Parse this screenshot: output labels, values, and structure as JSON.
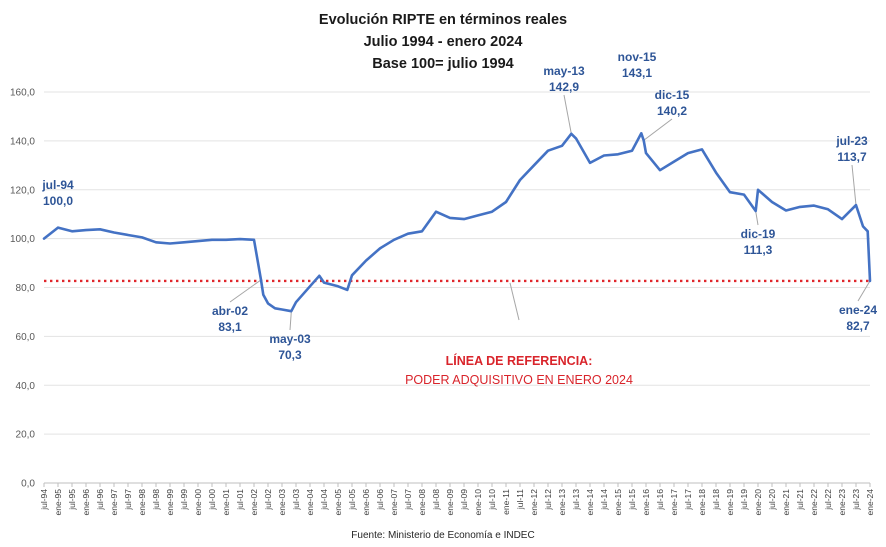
{
  "chart_data": {
    "type": "line",
    "title": [
      "Evolución RIPTE en términos reales",
      "Julio 1994 - enero 2024",
      "Base 100= julio 1994"
    ],
    "source": "Fuente: Ministerio de Economía e INDEC",
    "ylim": [
      0,
      160
    ],
    "yticks": [
      "0,0",
      "20,0",
      "40,0",
      "60,0",
      "80,0",
      "100,0",
      "120,0",
      "140,0",
      "160,0"
    ],
    "yticks_values": [
      0,
      20,
      40,
      60,
      80,
      100,
      120,
      140,
      160
    ],
    "grid": true,
    "line_color": "#4472c4",
    "reference_color": "#e0262b",
    "xticks": [
      "jul-94",
      "ene-95",
      "jul-95",
      "ene-96",
      "jul-96",
      "ene-97",
      "jul-97",
      "ene-98",
      "jul-98",
      "ene-99",
      "jul-99",
      "ene-00",
      "jul-00",
      "ene-01",
      "jul-01",
      "ene-02",
      "jul-02",
      "ene-03",
      "jul-03",
      "ene-04",
      "jul-04",
      "ene-05",
      "jul-05",
      "ene-06",
      "jul-06",
      "ene-07",
      "jul-07",
      "ene-08",
      "jul-08",
      "ene-09",
      "jul-09",
      "ene-10",
      "jul-10",
      "ene-11",
      "jul-11",
      "ene-12",
      "jul-12",
      "ene-13",
      "jul-13",
      "ene-14",
      "jul-14",
      "ene-15",
      "jul-15",
      "ene-16",
      "jul-16",
      "ene-17",
      "jul-17",
      "ene-18",
      "jul-18",
      "ene-19",
      "jul-19",
      "ene-20",
      "jul-20",
      "ene-21",
      "jul-21",
      "ene-22",
      "jul-22",
      "ene-23",
      "jul-23",
      "ene-24"
    ],
    "series": [
      {
        "x": [
          "jul-94",
          "ene-95",
          "jul-95",
          "ene-96",
          "jul-96",
          "ene-97",
          "jul-97",
          "ene-98",
          "jul-98",
          "ene-99",
          "jul-99",
          "ene-00",
          "jul-00",
          "ene-01",
          "jul-01",
          "ene-02",
          "abr-02",
          "may-02",
          "jul-02",
          "oct-02",
          "ene-03",
          "may-03",
          "jul-03",
          "ene-04",
          "may-04",
          "jul-04",
          "ene-05",
          "may-05",
          "jul-05",
          "ene-06",
          "jul-06",
          "ene-07",
          "jul-07",
          "ene-08",
          "jul-08",
          "ene-09",
          "jul-09",
          "ene-10",
          "jul-10",
          "ene-11",
          "jul-11",
          "ene-12",
          "jul-12",
          "ene-13",
          "may-13",
          "jul-13",
          "ene-14",
          "jul-14",
          "ene-15",
          "jul-15",
          "nov-15",
          "dic-15",
          "ene-16",
          "jul-16",
          "ene-17",
          "jul-17",
          "ene-18",
          "jul-18",
          "ene-19",
          "jul-19",
          "dic-19",
          "ene-20",
          "jul-20",
          "ene-21",
          "jul-21",
          "ene-22",
          "jul-22",
          "ene-23",
          "jul-23",
          "oct-23",
          "dic-23",
          "ene-24"
        ],
        "values": [
          100.0,
          104.5,
          103.0,
          103.5,
          103.8,
          102.5,
          101.5,
          100.5,
          98.5,
          98.0,
          98.5,
          99.0,
          99.5,
          99.5,
          99.8,
          99.5,
          83.1,
          77.0,
          73.5,
          71.5,
          71.0,
          70.3,
          74.0,
          80.5,
          84.8,
          82.0,
          80.5,
          79.0,
          85.0,
          91.0,
          96.0,
          99.5,
          102.0,
          103.0,
          111.0,
          108.5,
          108.0,
          109.5,
          111.0,
          115.0,
          124.0,
          130.0,
          136.0,
          138.0,
          142.9,
          141.0,
          131.0,
          134.0,
          134.5,
          136.0,
          143.1,
          140.2,
          135.0,
          128.0,
          131.5,
          135.0,
          136.5,
          127.0,
          119.0,
          118.0,
          111.3,
          120.0,
          115.0,
          111.5,
          113.0,
          113.5,
          112.0,
          108.0,
          113.7,
          105.0,
          103.0,
          82.7
        ]
      }
    ],
    "reference_line": {
      "value": 82.7,
      "label_line1": "LÍNEA DE REFERENCIA:",
      "label_line2": "PODER ADQUISITIVO  EN ENERO 2024"
    },
    "annotations": [
      {
        "x": "jul-94",
        "value": 100.0,
        "label": "jul-94",
        "value_label": "100,0"
      },
      {
        "x": "abr-02",
        "value": 83.1,
        "label": "abr-02",
        "value_label": "83,1"
      },
      {
        "x": "may-03",
        "value": 70.3,
        "label": "may-03",
        "value_label": "70,3"
      },
      {
        "x": "may-13",
        "value": 142.9,
        "label": "may-13",
        "value_label": "142,9"
      },
      {
        "x": "nov-15",
        "value": 143.1,
        "label": "nov-15",
        "value_label": "143,1"
      },
      {
        "x": "dic-15",
        "value": 140.2,
        "label": "dic-15",
        "value_label": "140,2"
      },
      {
        "x": "dic-19",
        "value": 111.3,
        "label": "dic-19",
        "value_label": "111,3"
      },
      {
        "x": "jul-23",
        "value": 113.7,
        "label": "jul-23",
        "value_label": "113,7"
      },
      {
        "x": "ene-24",
        "value": 82.7,
        "label": "ene-24",
        "value_label": "82,7"
      }
    ]
  }
}
